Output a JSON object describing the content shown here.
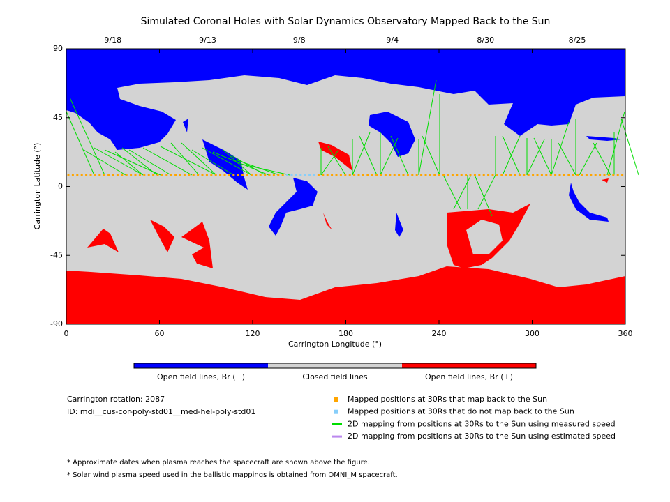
{
  "chart_data": {
    "type": "map",
    "title": "Simulated Coronal Holes with Solar Dynamics Observatory Mapped Back to the Sun",
    "x_label": "Carrington Longitude (°)",
    "y_label": "Carrington Latitude (°)",
    "xlim": [
      0,
      360
    ],
    "ylim": [
      -90,
      90
    ],
    "xticks": [
      0,
      60,
      120,
      180,
      240,
      300,
      360
    ],
    "yticks": [
      -90,
      -45,
      0,
      45,
      90
    ],
    "top_ticks": [
      {
        "value": 30,
        "label": "9/18"
      },
      {
        "value": 91,
        "label": "9/13"
      },
      {
        "value": 150,
        "label": "9/8"
      },
      {
        "value": 210,
        "label": "9/4"
      },
      {
        "value": 270,
        "label": "8/30"
      },
      {
        "value": 329,
        "label": "8/25"
      }
    ],
    "colorbar": [
      {
        "name": "Open field lines, Br (−)",
        "color": "#0000ff"
      },
      {
        "name": "Closed field lines",
        "color": "#d3d3d3"
      },
      {
        "name": "Open field lines, Br (+)",
        "color": "#ff0000"
      }
    ],
    "info": [
      "Carrington rotation: 2087",
      "ID: mdi__cus-cor-poly-std01__med-hel-poly-std01"
    ],
    "legend": [
      {
        "name": "Mapped positions at 30Rs that map back to the Sun",
        "color": "#ffa500",
        "marker": "square"
      },
      {
        "name": "Mapped positions at 30Rs that do not map back to the Sun",
        "color": "#87cefa",
        "marker": "square"
      },
      {
        "name": "2D mapping from positions at 30Rs to the Sun using measured speed",
        "color": "#00dd00",
        "marker": "line"
      },
      {
        "name": "2D mapping from positions at 30Rs to the Sun using estimated speed",
        "color": "#bb88ee",
        "marker": "line"
      }
    ],
    "notes": [
      "* Approximate dates when plasma reaches the spacecraft are shown above the figure.",
      "* Solar wind plasma speed used in the ballistic mappings is obtained from OMNI_M spacecraft."
    ]
  }
}
